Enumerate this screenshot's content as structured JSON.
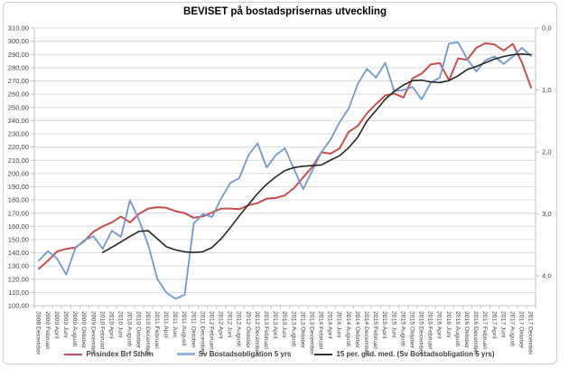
{
  "chart_data": {
    "type": "line",
    "title": "BEVISET på bostadsprisernas utveckling",
    "grid": "horizontal",
    "legend_position": "bottom",
    "categories": [
      "2008 December",
      "2009 Februari",
      "2009 April",
      "2009 Juni",
      "2009 Augusti",
      "2009 Oktober",
      "2009 December",
      "2010 Februari",
      "2010 April",
      "2010 Juni",
      "2010 Augusti",
      "2010 Oktober",
      "2010 December",
      "2011 Februari",
      "2011 April",
      "2011 Juni",
      "2011 Augusti",
      "2011 Oktober",
      "2011 December",
      "2012 Februari",
      "2012 April",
      "2012 Juni",
      "2012 Augusti",
      "2012 Oktober",
      "2012 December",
      "2013 Februari",
      "2013 April",
      "2013 Juni",
      "2013 Augusti",
      "2013 Oktober",
      "2013 December",
      "2014 Februari",
      "2014 April",
      "2014 Juni",
      "2014 Augusti",
      "2014 Oktober",
      "2014 December",
      "2015 Februari",
      "2015 April",
      "2015 Juni",
      "2015 Augusti",
      "2015 Oktober",
      "2015 December",
      "2016 Februari",
      "2016 April",
      "2016 Juni",
      "2016 Augusti",
      "2016 Oktober",
      "2016 December",
      "2017 Februari",
      "2017 April",
      "2017 Juni",
      "2017 Augusti",
      "2017 Oktober",
      "2017 December"
    ],
    "left_axis": {
      "min": 100,
      "max": 310,
      "step": 10,
      "tick_labels": [
        "310,00",
        "300,00",
        "290,00",
        "280,00",
        "270,00",
        "260,00",
        "250,00",
        "240,00",
        "230,00",
        "220,00",
        "210,00",
        "200,00",
        "190,00",
        "180,00",
        "170,00",
        "160,00",
        "150,00",
        "140,00",
        "130,00",
        "120,00",
        "110,00",
        "100,00"
      ]
    },
    "right_axis": {
      "min": 0.0,
      "max": 4.48,
      "step": 1.0,
      "direction": "down",
      "tick_labels": [
        "0,0",
        "1,0",
        "2,0",
        "3,0",
        "4,0"
      ]
    },
    "series": [
      {
        "name": "Prisindex Brf Sthlm",
        "axis": "left",
        "color": "#C0504D",
        "width": 2,
        "values": [
          128,
          134,
          141,
          143,
          144,
          149,
          156,
          160,
          163,
          167.5,
          163,
          169.5,
          173.5,
          174.5,
          174,
          171.5,
          170,
          166.5,
          167.5,
          170.5,
          173.5,
          173.5,
          173,
          176,
          177.5,
          181,
          181.5,
          183.5,
          189,
          197,
          205,
          216,
          215,
          219,
          231.5,
          236,
          245.5,
          252.5,
          259,
          260.5,
          257.5,
          272,
          275.5,
          282.5,
          283.5,
          270.5,
          287,
          286,
          295,
          298.5,
          297.5,
          293,
          298,
          284,
          265
        ]
      },
      {
        "name": "Sv Bostadsobligation  5 yrs",
        "axis": "right",
        "color": "#7497CB",
        "width": 1.8,
        "values": [
          3.75,
          3.6,
          3.72,
          3.98,
          3.55,
          3.42,
          3.36,
          3.56,
          3.27,
          3.37,
          2.78,
          3.1,
          3.5,
          4.05,
          4.27,
          4.37,
          4.3,
          3.15,
          3.0,
          3.05,
          2.75,
          2.5,
          2.42,
          2.05,
          1.86,
          2.25,
          2.05,
          1.94,
          2.28,
          2.6,
          2.3,
          2.0,
          1.8,
          1.52,
          1.3,
          0.9,
          0.66,
          0.8,
          0.56,
          1.02,
          1.0,
          0.95,
          1.15,
          0.88,
          0.8,
          0.25,
          0.23,
          0.5,
          0.7,
          0.52,
          0.46,
          0.58,
          0.46,
          0.32,
          0.45
        ]
      },
      {
        "name": "15 per. glid. med. (Sv Bostadsobligation  5 yrs)",
        "axis": "right",
        "color": "#262626",
        "width": 1.6,
        "values": [
          null,
          null,
          null,
          null,
          null,
          null,
          null,
          3.62,
          3.54,
          3.45,
          3.36,
          3.28,
          3.27,
          3.4,
          3.53,
          3.58,
          3.61,
          3.62,
          3.61,
          3.54,
          3.4,
          3.22,
          3.03,
          2.85,
          2.67,
          2.52,
          2.4,
          2.3,
          2.25,
          2.23,
          2.22,
          2.21,
          2.13,
          2.06,
          1.93,
          1.76,
          1.5,
          1.33,
          1.15,
          1.02,
          0.92,
          0.85,
          0.84,
          0.87,
          0.88,
          0.85,
          0.77,
          0.67,
          0.62,
          0.56,
          0.5,
          0.46,
          0.43,
          0.42,
          0.43
        ]
      }
    ],
    "colors": {
      "gridline": "#D9D9D9",
      "axis_line": "#BFBFBF",
      "tick_text": "#404040",
      "frame_border": "#D0D0D0"
    }
  }
}
